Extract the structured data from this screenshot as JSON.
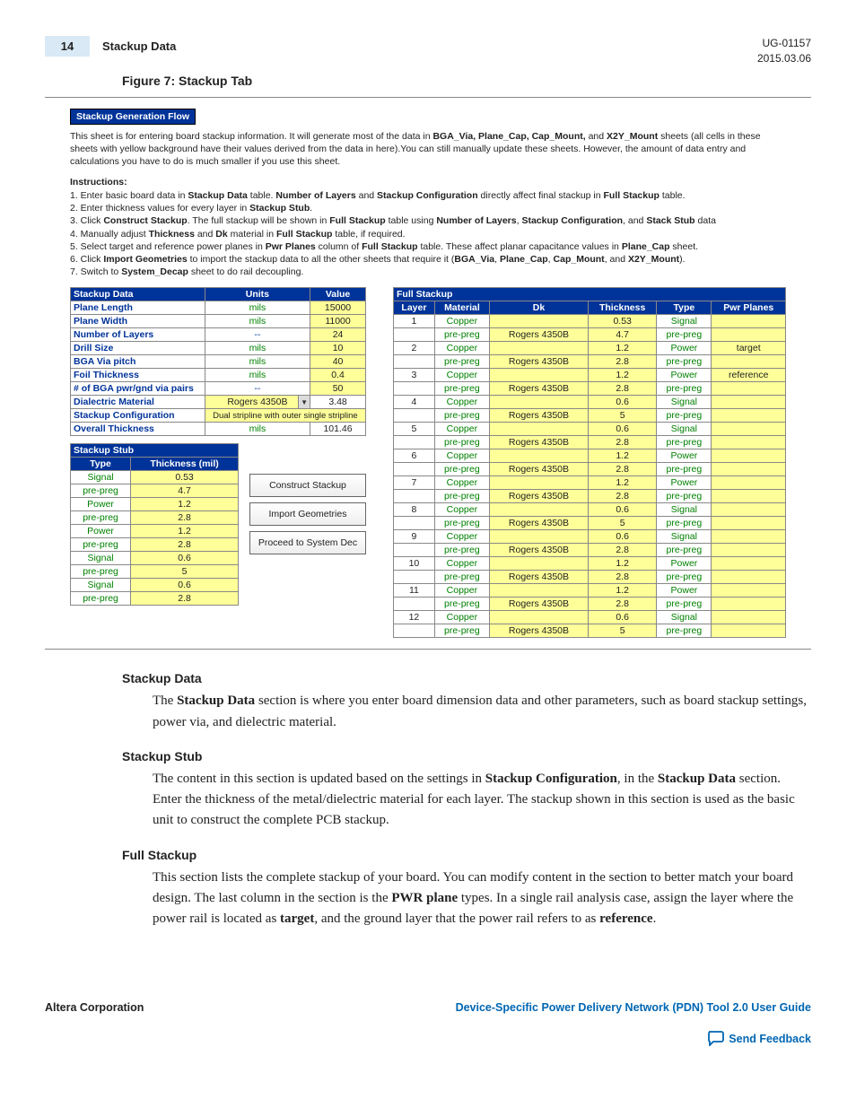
{
  "header": {
    "page_num": "14",
    "title": "Stackup Data",
    "doc_id": "UG-01157",
    "date": "2015.03.06"
  },
  "figure_title": "Figure 7: Stackup Tab",
  "gen_flow": {
    "title": "Stackup Generation Flow",
    "intro_a": "This sheet is for entering board stackup information. It will generate most of the data in ",
    "intro_bolds1": "BGA_Via, Plane_Cap, Cap_Mount,",
    "intro_mid": " and ",
    "intro_bolds2": "X2Y_Mount",
    "intro_b": " sheets (all cells in these sheets with yellow background have their values derived from the data in here).You can still manually update these sheets. However, the amount of data entry and calculations you have to do is much smaller if you use this sheet.",
    "instr_head": "Instructions:",
    "instr": [
      "1. Enter basic board data in Stackup Data table. Number of Layers and Stackup Configuration directly affect final stackup in Full Stackup table.",
      "2. Enter thickness values for every layer in Stackup Stub.",
      "3. Click Construct Stackup. The full stackup will be shown in Full Stackup table using Number of Layers, Stackup Configuration, and Stack Stub data",
      "4. Manually adjust Thickness and Dk material in Full Stackup table, if required.",
      "5. Select target and reference power planes in Pwr Planes column of Full Stackup table. These affect planar capacitance values in Plane_Cap sheet.",
      "6. Click Import Geometries to import the stackup data to all the other sheets that require it (BGA_Via, Plane_Cap, Cap_Mount, and X2Y_Mount).",
      "7. Switch to System_Decap sheet to do rail decoupling."
    ]
  },
  "stackup_data": {
    "title": "Stackup Data",
    "units_h": "Units",
    "value_h": "Value",
    "rows": [
      {
        "label": "Plane Length",
        "units": "mils",
        "value": "15000",
        "yellow": true
      },
      {
        "label": "Plane Width",
        "units": "mils",
        "value": "11000",
        "yellow": true
      },
      {
        "label": "Number of Layers",
        "units": "--",
        "value": "24",
        "yellow": true
      },
      {
        "label": "Drill Size",
        "units": "mils",
        "value": "10",
        "yellow": true
      },
      {
        "label": "BGA Via pitch",
        "units": "mils",
        "value": "40",
        "yellow": true
      },
      {
        "label": "Foil Thickness",
        "units": "mils",
        "value": "0.4",
        "yellow": true
      },
      {
        "label": "# of BGA pwr/gnd via pairs",
        "units": "--",
        "value": "50",
        "yellow": true
      },
      {
        "label": "Dialectric Material",
        "units": "Rogers 4350B",
        "value": "3.48",
        "dropdown": true
      },
      {
        "label": "Stackup Configuration",
        "units_span": "Dual stripline with outer single stripline",
        "span": true
      },
      {
        "label": "Overall Thickness",
        "units": "mils",
        "value": "101.46",
        "white": true
      }
    ]
  },
  "stackup_stub": {
    "title": "Stackup Stub",
    "type_h": "Type",
    "thick_h": "Thickness (mil)",
    "rows": [
      {
        "type": "Signal",
        "thick": "0.53"
      },
      {
        "type": "pre-preg",
        "thick": "4.7"
      },
      {
        "type": "Power",
        "thick": "1.2"
      },
      {
        "type": "pre-preg",
        "thick": "2.8"
      },
      {
        "type": "Power",
        "thick": "1.2"
      },
      {
        "type": "pre-preg",
        "thick": "2.8"
      },
      {
        "type": "Signal",
        "thick": "0.6"
      },
      {
        "type": "pre-preg",
        "thick": "5"
      },
      {
        "type": "Signal",
        "thick": "0.6"
      },
      {
        "type": "pre-preg",
        "thick": "2.8"
      }
    ]
  },
  "buttons": {
    "construct": "Construct Stackup",
    "import": "Import Geometries",
    "proceed": "Proceed to System Dec"
  },
  "full_stackup": {
    "title": "Full Stackup",
    "h_layer": "Layer",
    "h_material": "Material",
    "h_dk": "Dk",
    "h_thick": "Thickness",
    "h_type": "Type",
    "h_pwr": "Pwr Planes",
    "rows": [
      {
        "layer": "1",
        "mat": "Copper",
        "dk": "",
        "thick": "0.53",
        "type": "Signal",
        "pwr": ""
      },
      {
        "layer": "",
        "mat": "pre-preg",
        "dk": "Rogers 4350B",
        "thick": "4.7",
        "type": "pre-preg",
        "pwr": ""
      },
      {
        "layer": "2",
        "mat": "Copper",
        "dk": "",
        "thick": "1.2",
        "type": "Power",
        "pwr": "target"
      },
      {
        "layer": "",
        "mat": "pre-preg",
        "dk": "Rogers 4350B",
        "thick": "2.8",
        "type": "pre-preg",
        "pwr": ""
      },
      {
        "layer": "3",
        "mat": "Copper",
        "dk": "",
        "thick": "1.2",
        "type": "Power",
        "pwr": "reference"
      },
      {
        "layer": "",
        "mat": "pre-preg",
        "dk": "Rogers 4350B",
        "thick": "2.8",
        "type": "pre-preg",
        "pwr": ""
      },
      {
        "layer": "4",
        "mat": "Copper",
        "dk": "",
        "thick": "0.6",
        "type": "Signal",
        "pwr": ""
      },
      {
        "layer": "",
        "mat": "pre-preg",
        "dk": "Rogers 4350B",
        "thick": "5",
        "type": "pre-preg",
        "pwr": ""
      },
      {
        "layer": "5",
        "mat": "Copper",
        "dk": "",
        "thick": "0.6",
        "type": "Signal",
        "pwr": ""
      },
      {
        "layer": "",
        "mat": "pre-preg",
        "dk": "Rogers 4350B",
        "thick": "2.8",
        "type": "pre-preg",
        "pwr": ""
      },
      {
        "layer": "6",
        "mat": "Copper",
        "dk": "",
        "thick": "1.2",
        "type": "Power",
        "pwr": ""
      },
      {
        "layer": "",
        "mat": "pre-preg",
        "dk": "Rogers 4350B",
        "thick": "2.8",
        "type": "pre-preg",
        "pwr": ""
      },
      {
        "layer": "7",
        "mat": "Copper",
        "dk": "",
        "thick": "1.2",
        "type": "Power",
        "pwr": ""
      },
      {
        "layer": "",
        "mat": "pre-preg",
        "dk": "Rogers 4350B",
        "thick": "2.8",
        "type": "pre-preg",
        "pwr": ""
      },
      {
        "layer": "8",
        "mat": "Copper",
        "dk": "",
        "thick": "0.6",
        "type": "Signal",
        "pwr": ""
      },
      {
        "layer": "",
        "mat": "pre-preg",
        "dk": "Rogers 4350B",
        "thick": "5",
        "type": "pre-preg",
        "pwr": ""
      },
      {
        "layer": "9",
        "mat": "Copper",
        "dk": "",
        "thick": "0.6",
        "type": "Signal",
        "pwr": ""
      },
      {
        "layer": "",
        "mat": "pre-preg",
        "dk": "Rogers 4350B",
        "thick": "2.8",
        "type": "pre-preg",
        "pwr": ""
      },
      {
        "layer": "10",
        "mat": "Copper",
        "dk": "",
        "thick": "1.2",
        "type": "Power",
        "pwr": ""
      },
      {
        "layer": "",
        "mat": "pre-preg",
        "dk": "Rogers 4350B",
        "thick": "2.8",
        "type": "pre-preg",
        "pwr": ""
      },
      {
        "layer": "11",
        "mat": "Copper",
        "dk": "",
        "thick": "1.2",
        "type": "Power",
        "pwr": ""
      },
      {
        "layer": "",
        "mat": "pre-preg",
        "dk": "Rogers 4350B",
        "thick": "2.8",
        "type": "pre-preg",
        "pwr": ""
      },
      {
        "layer": "12",
        "mat": "Copper",
        "dk": "",
        "thick": "0.6",
        "type": "Signal",
        "pwr": ""
      },
      {
        "layer": "",
        "mat": "pre-preg",
        "dk": "Rogers 4350B",
        "thick": "5",
        "type": "pre-preg",
        "pwr": ""
      }
    ]
  },
  "sections": {
    "sd_h": "Stackup Data",
    "sd_p_a": "The ",
    "sd_p_b": "Stackup Data",
    "sd_p_c": " section is where you enter board dimension data and other parameters, such as board stackup settings, power via, and dielectric material.",
    "ss_h": "Stackup Stub",
    "ss_p_a": "The content in this section is updated based on the settings in ",
    "ss_p_b": "Stackup Configuration",
    "ss_p_c": ", in the ",
    "ss_p_d": "Stackup Data",
    "ss_p_e": " section. Enter the thickness of the metal/dielectric material for each layer. The stackup shown in this section is used as the basic unit to construct the complete PCB stackup.",
    "fs_h": "Full Stackup",
    "fs_p_a": "This section lists the complete stackup of your board. You can modify content in the section to better match your board design. The last column in the section is the ",
    "fs_p_b": "PWR plane",
    "fs_p_c": " types. In a single rail analysis case, assign the layer where the power rail is located as ",
    "fs_p_d": "target",
    "fs_p_e": ", and the ground layer that the power rail refers to as ",
    "fs_p_f": "reference",
    "fs_p_g": "."
  },
  "footer": {
    "left": "Altera Corporation",
    "right": "Device-Specific Power Delivery Network (PDN) Tool 2.0 User Guide",
    "feedback": "Send Feedback"
  },
  "colors": {
    "header_blue": "#003399",
    "yellow": "#ffff99",
    "link_blue": "#0066b3",
    "green": "#008000"
  }
}
